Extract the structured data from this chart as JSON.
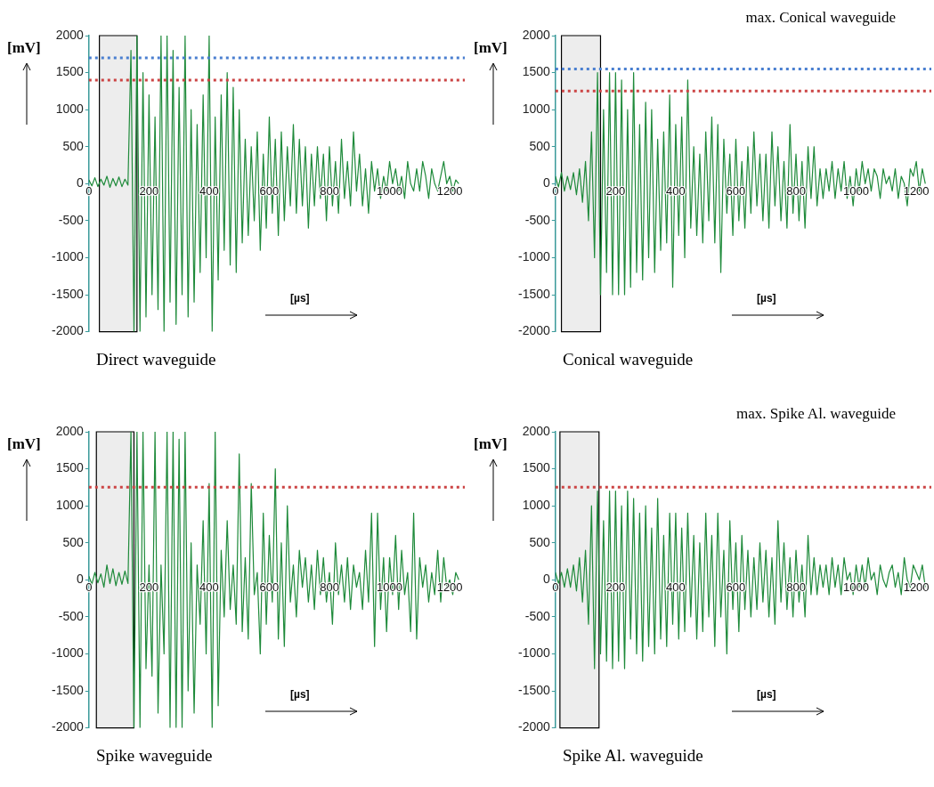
{
  "chart_data": [
    {
      "type": "line",
      "title": "Direct waveguide",
      "xlabel": "[µs]",
      "ylabel": "[mV]",
      "marker": "none",
      "xlim": [
        0,
        1250
      ],
      "xticks": [
        0,
        200,
        400,
        600,
        800,
        1000,
        1200
      ],
      "ylim": [
        -2000,
        2000
      ],
      "yticks": [
        -2000,
        -1500,
        -1000,
        -500,
        0,
        500,
        1000,
        1500,
        2000
      ],
      "ref_lines": [
        {
          "axis": "y",
          "value": 1700,
          "color": "#4a7fd0",
          "line_style": "dotted"
        },
        {
          "axis": "y",
          "value": 1400,
          "color": "#cc4444",
          "line_style": "dotted"
        }
      ],
      "bands": [
        {
          "axis": "x",
          "from": 35,
          "to": 160,
          "color": "#000000"
        }
      ],
      "x": [
        0,
        10,
        20,
        30,
        40,
        50,
        60,
        70,
        80,
        90,
        100,
        110,
        120,
        130,
        140,
        150,
        160,
        170,
        180,
        190,
        200,
        210,
        220,
        230,
        240,
        250,
        260,
        270,
        280,
        290,
        300,
        310,
        320,
        330,
        340,
        350,
        360,
        370,
        380,
        390,
        400,
        410,
        420,
        430,
        440,
        450,
        460,
        470,
        480,
        490,
        500,
        510,
        520,
        530,
        540,
        550,
        560,
        570,
        580,
        590,
        600,
        610,
        620,
        630,
        640,
        650,
        660,
        670,
        680,
        690,
        700,
        710,
        720,
        730,
        740,
        750,
        760,
        770,
        780,
        790,
        800,
        810,
        820,
        830,
        840,
        850,
        860,
        870,
        880,
        890,
        900,
        910,
        920,
        930,
        940,
        950,
        960,
        970,
        980,
        990,
        1000,
        1010,
        1020,
        1030,
        1040,
        1050,
        1060,
        1070,
        1080,
        1090,
        1100,
        1110,
        1120,
        1130,
        1140,
        1150,
        1160,
        1170,
        1180,
        1190,
        1200,
        1210,
        1220,
        1230
      ],
      "series": [
        {
          "color": "#1e8a3a",
          "values": [
            50,
            -30,
            80,
            -40,
            60,
            -20,
            100,
            -50,
            70,
            -30,
            90,
            -40,
            60,
            -20,
            1800,
            -2000,
            2000,
            -2000,
            1500,
            -1800,
            1200,
            -1500,
            900,
            -1700,
            2000,
            -2000,
            2000,
            -1600,
            1800,
            -1900,
            1300,
            -1500,
            2000,
            -1800,
            1000,
            -1600,
            800,
            -1200,
            1200,
            -1000,
            2000,
            -2000,
            900,
            -1300,
            1200,
            -900,
            1500,
            -1100,
            1300,
            -1200,
            1000,
            -800,
            600,
            -700,
            500,
            -500,
            700,
            -900,
            400,
            -600,
            900,
            -400,
            600,
            -700,
            700,
            -500,
            500,
            -300,
            800,
            -400,
            600,
            -300,
            500,
            -600,
            400,
            -300,
            500,
            -200,
            400,
            -500,
            500,
            -300,
            300,
            -400,
            600,
            -200,
            300,
            -300,
            700,
            -100,
            400,
            -300,
            200,
            -400,
            300,
            -100,
            200,
            -200,
            100,
            -100,
            300,
            0,
            200,
            -100,
            100,
            -200,
            300,
            0,
            -100,
            200,
            -100,
            300,
            100,
            -200,
            200,
            0,
            -100,
            100,
            300,
            0,
            100,
            -100,
            50,
            0
          ]
        }
      ]
    },
    {
      "type": "line",
      "title": "Conical waveguide",
      "xlabel": "[µs]",
      "ylabel": "[mV]",
      "annotations": [
        "max. Conical waveguide"
      ],
      "marker": "none",
      "xlim": [
        0,
        1250
      ],
      "xticks": [
        0,
        200,
        400,
        600,
        800,
        1000,
        1200
      ],
      "ylim": [
        -2000,
        2000
      ],
      "yticks": [
        -2000,
        -1500,
        -1000,
        -500,
        0,
        500,
        1000,
        1500,
        2000
      ],
      "ref_lines": [
        {
          "axis": "y",
          "value": 1550,
          "color": "#4a7fd0",
          "line_style": "dotted"
        },
        {
          "axis": "y",
          "value": 1250,
          "color": "#cc4444",
          "line_style": "dotted"
        }
      ],
      "bands": [
        {
          "axis": "x",
          "from": 20,
          "to": 150,
          "color": "#000000"
        }
      ],
      "x": [
        0,
        10,
        20,
        30,
        40,
        50,
        60,
        70,
        80,
        90,
        100,
        110,
        120,
        130,
        140,
        150,
        160,
        170,
        180,
        190,
        200,
        210,
        220,
        230,
        240,
        250,
        260,
        270,
        280,
        290,
        300,
        310,
        320,
        330,
        340,
        350,
        360,
        370,
        380,
        390,
        400,
        410,
        420,
        430,
        440,
        450,
        460,
        470,
        480,
        490,
        500,
        510,
        520,
        530,
        540,
        550,
        560,
        570,
        580,
        590,
        600,
        610,
        620,
        630,
        640,
        650,
        660,
        670,
        680,
        690,
        700,
        710,
        720,
        730,
        740,
        750,
        760,
        770,
        780,
        790,
        800,
        810,
        820,
        830,
        840,
        850,
        860,
        870,
        880,
        890,
        900,
        910,
        920,
        930,
        940,
        950,
        960,
        970,
        980,
        990,
        1000,
        1010,
        1020,
        1030,
        1040,
        1050,
        1060,
        1070,
        1080,
        1090,
        1100,
        1110,
        1120,
        1130,
        1140,
        1150,
        1160,
        1170,
        1180,
        1190,
        1200,
        1210,
        1220,
        1230
      ],
      "series": [
        {
          "color": "#1e8a3a",
          "values": [
            100,
            -50,
            150,
            -100,
            100,
            -80,
            150,
            -150,
            200,
            -250,
            300,
            -500,
            700,
            -1000,
            1500,
            -1500,
            1000,
            -1200,
            1500,
            -1500,
            1500,
            -1500,
            1400,
            -1500,
            1000,
            -1400,
            1500,
            -1200,
            800,
            -1300,
            1100,
            -1000,
            1000,
            -1200,
            600,
            -900,
            700,
            -800,
            1200,
            -1400,
            800,
            -700,
            900,
            -1000,
            1400,
            -600,
            500,
            -700,
            400,
            -800,
            700,
            -500,
            900,
            -800,
            800,
            -1200,
            600,
            -400,
            400,
            -700,
            600,
            -500,
            300,
            -600,
            500,
            -400,
            700,
            -300,
            400,
            -500,
            400,
            -600,
            700,
            -300,
            500,
            -500,
            300,
            -600,
            800,
            -400,
            400,
            -500,
            300,
            -600,
            500,
            -200,
            500,
            -300,
            200,
            -200,
            200,
            -100,
            300,
            -200,
            200,
            -100,
            300,
            -200,
            100,
            -300,
            200,
            -100,
            300,
            0,
            200,
            -100,
            200,
            100,
            -200,
            200,
            0,
            100,
            -100,
            200,
            -200,
            100,
            0,
            -300,
            200,
            100,
            300,
            -100,
            200,
            0
          ]
        }
      ]
    },
    {
      "type": "line",
      "title": "Spike waveguide",
      "xlabel": "[µs]",
      "ylabel": "[mV]",
      "marker": "none",
      "xlim": [
        0,
        1250
      ],
      "xticks": [
        0,
        200,
        400,
        600,
        800,
        1000,
        1200
      ],
      "ylim": [
        -2000,
        2000
      ],
      "yticks": [
        -2000,
        -1500,
        -1000,
        -500,
        0,
        500,
        1000,
        1500,
        2000
      ],
      "ref_lines": [
        {
          "axis": "y",
          "value": 1250,
          "color": "#cc4444",
          "line_style": "dotted"
        }
      ],
      "bands": [
        {
          "axis": "x",
          "from": 25,
          "to": 150,
          "color": "#000000"
        }
      ],
      "x": [
        0,
        10,
        20,
        30,
        40,
        50,
        60,
        70,
        80,
        90,
        100,
        110,
        120,
        130,
        140,
        150,
        160,
        170,
        180,
        190,
        200,
        210,
        220,
        230,
        240,
        250,
        260,
        270,
        280,
        290,
        300,
        310,
        320,
        330,
        340,
        350,
        360,
        370,
        380,
        390,
        400,
        410,
        420,
        430,
        440,
        450,
        460,
        470,
        480,
        490,
        500,
        510,
        520,
        530,
        540,
        550,
        560,
        570,
        580,
        590,
        600,
        610,
        620,
        630,
        640,
        650,
        660,
        670,
        680,
        690,
        700,
        710,
        720,
        730,
        740,
        750,
        760,
        770,
        780,
        790,
        800,
        810,
        820,
        830,
        840,
        850,
        860,
        870,
        880,
        890,
        900,
        910,
        920,
        930,
        940,
        950,
        960,
        970,
        980,
        990,
        1000,
        1010,
        1020,
        1030,
        1040,
        1050,
        1060,
        1070,
        1080,
        1090,
        1100,
        1110,
        1120,
        1130,
        1140,
        1150,
        1160,
        1170,
        1180,
        1190,
        1200,
        1210,
        1220,
        1230
      ],
      "series": [
        {
          "color": "#1e8a3a",
          "values": [
            50,
            -60,
            100,
            -40,
            80,
            -100,
            200,
            -50,
            150,
            -80,
            100,
            -60,
            120,
            -50,
            2000,
            -2000,
            2000,
            -2000,
            2000,
            -1200,
            200,
            -1300,
            2000,
            -1800,
            200,
            -1000,
            2000,
            -2000,
            2000,
            -2000,
            1900,
            -2000,
            2000,
            -1500,
            500,
            -1800,
            200,
            -600,
            800,
            -1000,
            1300,
            -2000,
            2000,
            -1700,
            400,
            -500,
            800,
            -400,
            200,
            -600,
            1700,
            -700,
            300,
            -800,
            1300,
            -200,
            100,
            -1000,
            900,
            -600,
            600,
            -300,
            1500,
            -800,
            500,
            -900,
            1000,
            -300,
            200,
            -500,
            400,
            -100,
            300,
            -300,
            200,
            -400,
            400,
            -200,
            300,
            -300,
            100,
            -600,
            500,
            -200,
            200,
            -300,
            300,
            -400,
            200,
            -100,
            100,
            -400,
            400,
            -300,
            900,
            -900,
            900,
            -400,
            300,
            -700,
            300,
            -200,
            600,
            -400,
            400,
            -200,
            100,
            -700,
            900,
            -800,
            300,
            -100,
            200,
            -300,
            100,
            -200,
            400,
            -300,
            300,
            -100,
            0,
            -200,
            100,
            0
          ]
        }
      ]
    },
    {
      "type": "line",
      "title": "Spike Al. waveguide",
      "xlabel": "[µs]",
      "ylabel": "[mV]",
      "annotations": [
        "max.  Spike Al. waveguide"
      ],
      "marker": "none",
      "xlim": [
        0,
        1250
      ],
      "xticks": [
        0,
        200,
        400,
        600,
        800,
        1000,
        1200
      ],
      "ylim": [
        -2000,
        2000
      ],
      "yticks": [
        -2000,
        -1500,
        -1000,
        -500,
        0,
        500,
        1000,
        1500,
        2000
      ],
      "ref_lines": [
        {
          "axis": "y",
          "value": 1250,
          "color": "#cc4444",
          "line_style": "dotted"
        }
      ],
      "bands": [
        {
          "axis": "x",
          "from": 15,
          "to": 145,
          "color": "#000000"
        }
      ],
      "x": [
        0,
        10,
        20,
        30,
        40,
        50,
        60,
        70,
        80,
        90,
        100,
        110,
        120,
        130,
        140,
        150,
        160,
        170,
        180,
        190,
        200,
        210,
        220,
        230,
        240,
        250,
        260,
        270,
        280,
        290,
        300,
        310,
        320,
        330,
        340,
        350,
        360,
        370,
        380,
        390,
        400,
        410,
        420,
        430,
        440,
        450,
        460,
        470,
        480,
        490,
        500,
        510,
        520,
        530,
        540,
        550,
        560,
        570,
        580,
        590,
        600,
        610,
        620,
        630,
        640,
        650,
        660,
        670,
        680,
        690,
        700,
        710,
        720,
        730,
        740,
        750,
        760,
        770,
        780,
        790,
        800,
        810,
        820,
        830,
        840,
        850,
        860,
        870,
        880,
        890,
        900,
        910,
        920,
        930,
        940,
        950,
        960,
        970,
        980,
        990,
        1000,
        1010,
        1020,
        1030,
        1040,
        1050,
        1060,
        1070,
        1080,
        1090,
        1100,
        1110,
        1120,
        1130,
        1140,
        1150,
        1160,
        1170,
        1180,
        1190,
        1200,
        1210,
        1220,
        1230
      ],
      "series": [
        {
          "color": "#1e8a3a",
          "values": [
            100,
            -50,
            100,
            -100,
            150,
            -100,
            200,
            -150,
            300,
            -300,
            400,
            -600,
            1000,
            -1200,
            1200,
            -1000,
            800,
            -1100,
            1200,
            -1200,
            1200,
            -1100,
            1000,
            -1200,
            1200,
            -800,
            1100,
            -1000,
            900,
            -1100,
            1000,
            -900,
            700,
            -1000,
            1100,
            -800,
            600,
            -900,
            900,
            -600,
            900,
            -800,
            700,
            -700,
            900,
            -500,
            600,
            -800,
            500,
            -700,
            900,
            -500,
            600,
            -900,
            900,
            -500,
            400,
            -1000,
            800,
            -400,
            500,
            -700,
            600,
            -400,
            400,
            -500,
            300,
            -400,
            500,
            -300,
            400,
            -500,
            300,
            -600,
            800,
            -300,
            500,
            -400,
            300,
            -500,
            400,
            -300,
            200,
            -500,
            600,
            -200,
            300,
            -200,
            200,
            -100,
            200,
            -200,
            300,
            -100,
            200,
            -200,
            300,
            0,
            100,
            -200,
            200,
            -100,
            200,
            -100,
            300,
            0,
            100,
            -200,
            200,
            0,
            -100,
            100,
            200,
            -100,
            100,
            -200,
            300,
            0,
            -100,
            200,
            100,
            0,
            200,
            -100
          ]
        }
      ]
    }
  ]
}
